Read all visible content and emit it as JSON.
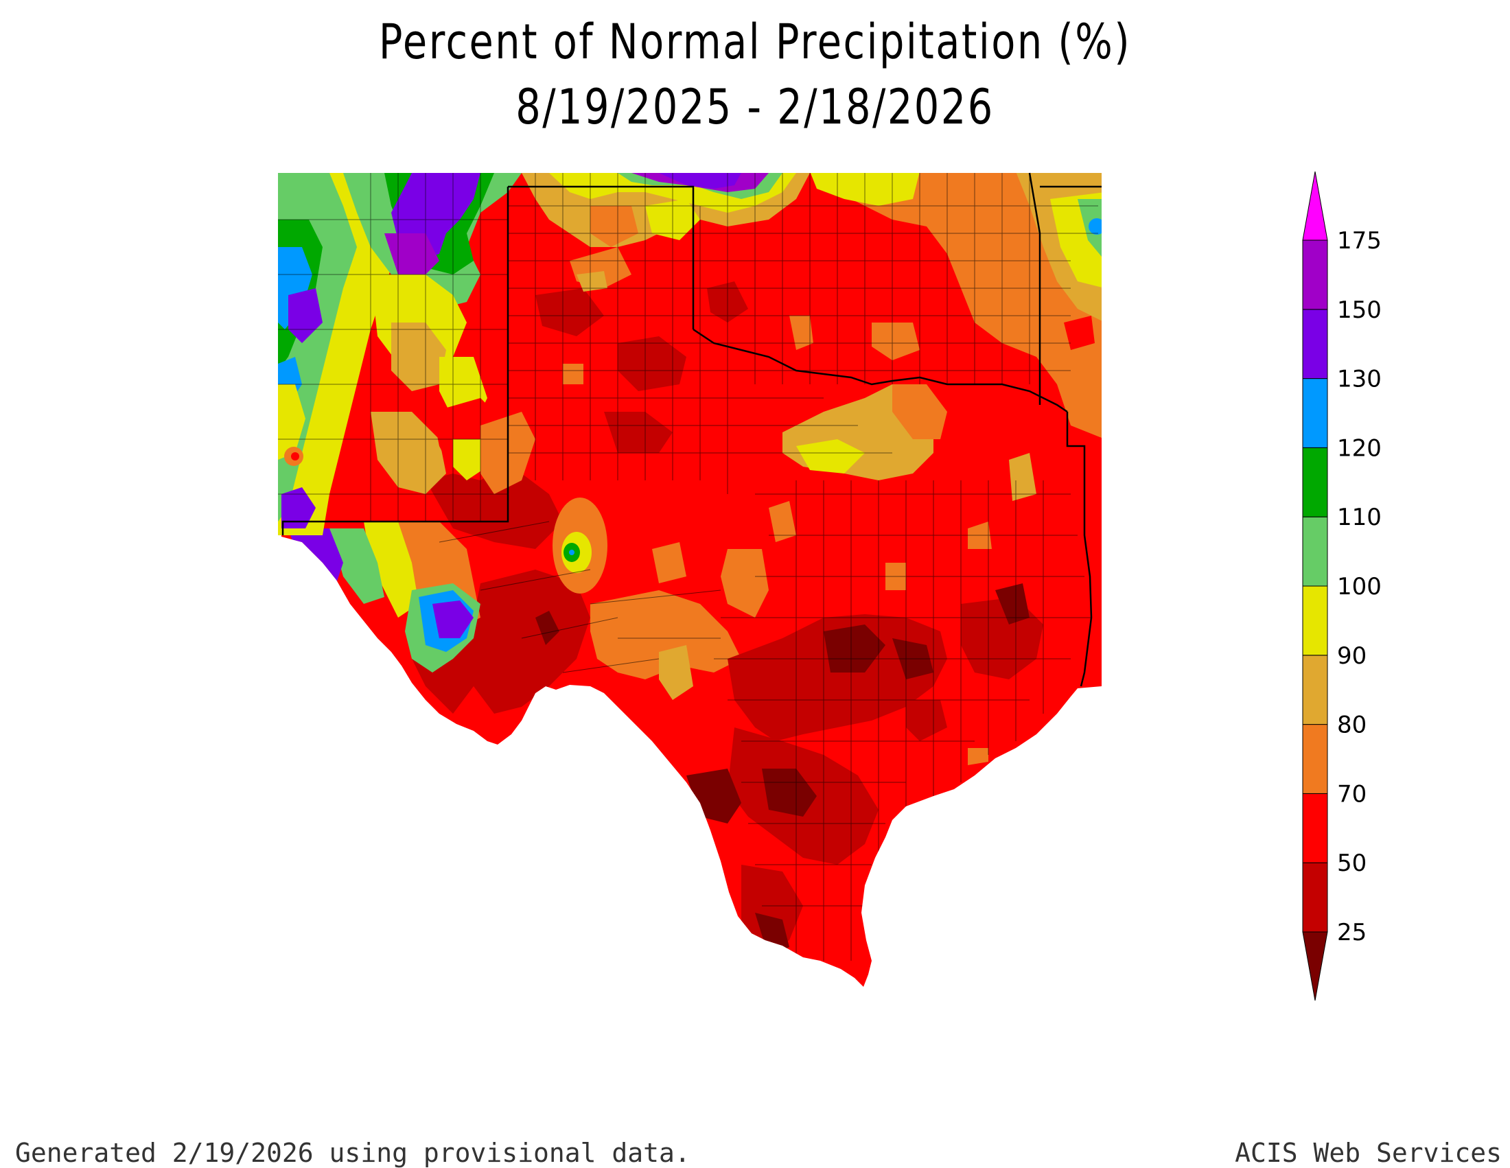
{
  "title": "Percent of Normal Precipitation (%)",
  "subtitle": "8/19/2025 - 2/18/2026",
  "footer_left": "Generated 2/19/2026  using provisional data.",
  "footer_right": "ACIS Web Services",
  "legend": {
    "tick_labels": [
      "25",
      "50",
      "70",
      "80",
      "90",
      "100",
      "110",
      "120",
      "130",
      "150",
      "175"
    ],
    "bins": [
      {
        "color": "#7a0000"
      },
      {
        "color": "#c40000"
      },
      {
        "color": "#ff0000"
      },
      {
        "color": "#f07a20"
      },
      {
        "color": "#e0a830"
      },
      {
        "color": "#e6e600"
      },
      {
        "color": "#66cc66"
      },
      {
        "color": "#00a800"
      },
      {
        "color": "#0099ff"
      },
      {
        "color": "#7a00e6"
      },
      {
        "color": "#a000c8"
      },
      {
        "color": "#ff00ff"
      }
    ]
  },
  "map": {
    "region": "Southern Plains (Texas, Oklahoma, New Mexico)",
    "colors": {
      "dark_red": "#7a0000",
      "deep_red": "#c40000",
      "red": "#ff0000",
      "orange": "#f07a20",
      "gold": "#e0a830",
      "yellow": "#e6e600",
      "light_green": "#66cc66",
      "green": "#00a800",
      "blue": "#0099ff",
      "purple": "#7a00e6",
      "violet": "#a000c8"
    }
  }
}
